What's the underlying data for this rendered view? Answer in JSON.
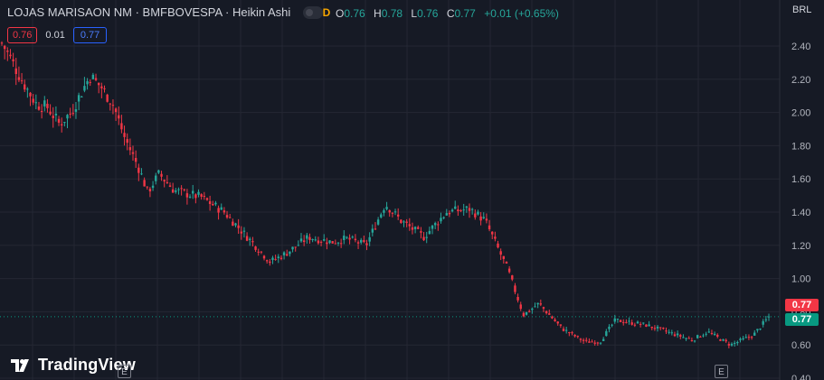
{
  "header": {
    "symbol": "LOJAS MARISAON NM · BMFBOVESPA · Heikin Ashi",
    "timeframe_badge": "D",
    "ohlc": {
      "o_label": "O",
      "o": "0.76",
      "h_label": "H",
      "h": "0.78",
      "l_label": "L",
      "l": "0.76",
      "c_label": "C",
      "c": "0.77",
      "change": "+0.01 (+0.65%)"
    }
  },
  "orders": {
    "sell": "0.76",
    "spread": "0.01",
    "buy": "0.77"
  },
  "axis": {
    "currency": "BRL"
  },
  "price_tags": {
    "sell": "0.77",
    "last": "0.77"
  },
  "logo": {
    "text": "TradingView",
    "icon": "tradingview-logo-icon"
  },
  "events": [
    {
      "label": "E"
    },
    {
      "label": "E"
    }
  ],
  "colors": {
    "up": "#26a69a",
    "down": "#f23645",
    "background": "#161a25",
    "grid": "#242733"
  },
  "chart_data": {
    "type": "candlestick",
    "style": "Heikin Ashi",
    "ylim": [
      0.38,
      2.55
    ],
    "y_ticks": [
      2.4,
      2.2,
      2.0,
      1.8,
      1.6,
      1.4,
      1.2,
      1.0,
      0.8,
      0.6,
      0.4
    ],
    "y_tick_labels": [
      "2.40",
      "2.20",
      "2.00",
      "1.80",
      "1.60",
      "1.40",
      "1.20",
      "1.00",
      "0.80",
      "0.60",
      "0.40"
    ],
    "last_price": 0.77,
    "close_path": [
      [
        0,
        2.42
      ],
      [
        0.028,
        2.18
      ],
      [
        0.045,
        2.05
      ],
      [
        0.06,
        2.03
      ],
      [
        0.075,
        1.93
      ],
      [
        0.09,
        2.0
      ],
      [
        0.115,
        2.22
      ],
      [
        0.13,
        2.15
      ],
      [
        0.145,
        2.05
      ],
      [
        0.16,
        1.85
      ],
      [
        0.18,
        1.65
      ],
      [
        0.19,
        1.52
      ],
      [
        0.205,
        1.63
      ],
      [
        0.225,
        1.53
      ],
      [
        0.26,
        1.49
      ],
      [
        0.29,
        1.4
      ],
      [
        0.32,
        1.25
      ],
      [
        0.35,
        1.1
      ],
      [
        0.37,
        1.15
      ],
      [
        0.4,
        1.25
      ],
      [
        0.43,
        1.22
      ],
      [
        0.45,
        1.24
      ],
      [
        0.475,
        1.2
      ],
      [
        0.5,
        1.45
      ],
      [
        0.52,
        1.35
      ],
      [
        0.55,
        1.25
      ],
      [
        0.58,
        1.4
      ],
      [
        0.61,
        1.42
      ],
      [
        0.63,
        1.35
      ],
      [
        0.66,
        1.05
      ],
      [
        0.68,
        0.78
      ],
      [
        0.7,
        0.85
      ],
      [
        0.73,
        0.7
      ],
      [
        0.76,
        0.62
      ],
      [
        0.78,
        0.62
      ],
      [
        0.8,
        0.75
      ],
      [
        0.84,
        0.72
      ],
      [
        0.88,
        0.66
      ],
      [
        0.9,
        0.63
      ],
      [
        0.92,
        0.68
      ],
      [
        0.95,
        0.6
      ],
      [
        0.98,
        0.66
      ],
      [
        1.0,
        0.77
      ]
    ],
    "candle_count": 270
  }
}
